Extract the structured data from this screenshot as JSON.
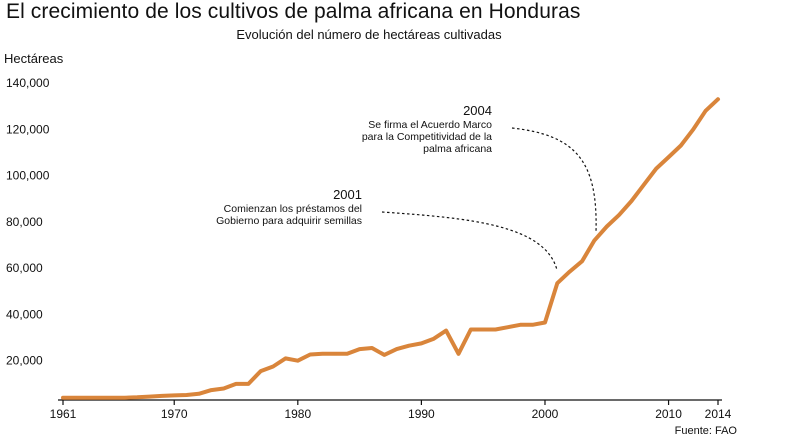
{
  "chart_data": {
    "type": "line",
    "title": "El crecimiento de los cultivos de palma africana en Honduras",
    "subtitle": "Evolución del número de hectáreas cultivadas",
    "ylabel": "Hectáreas",
    "xlabel": "",
    "xlim": [
      1961,
      2014
    ],
    "ylim": [
      0,
      140000
    ],
    "x_ticks": [
      1961,
      1970,
      1980,
      1990,
      2000,
      2010,
      2014
    ],
    "y_ticks": [
      20000,
      40000,
      60000,
      80000,
      100000,
      120000,
      140000
    ],
    "y_tick_labels": [
      "20,000",
      "40,000",
      "60,000",
      "80,000",
      "100,000",
      "120,000",
      "140,000"
    ],
    "grid": false,
    "line_color": "#d9853b",
    "series": [
      {
        "x": [
          1961,
          1962,
          1963,
          1964,
          1965,
          1966,
          1967,
          1968,
          1969,
          1970,
          1971,
          1972,
          1973,
          1974,
          1975,
          1976,
          1977,
          1978,
          1979,
          1980,
          1981,
          1982,
          1983,
          1984,
          1985,
          1986,
          1987,
          1988,
          1989,
          1990,
          1991,
          1992,
          1993,
          1994,
          1995,
          1996,
          1997,
          1998,
          1999,
          2000,
          2001,
          2002,
          2003,
          2004,
          2005,
          2006,
          2007,
          2008,
          2009,
          2010,
          2011,
          2012,
          2013,
          2014
        ],
        "values": [
          4000,
          4000,
          4000,
          4000,
          4000,
          4000,
          4200,
          4500,
          4800,
          5000,
          5200,
          5700,
          7300,
          8000,
          10000,
          10000,
          15500,
          17500,
          21000,
          20000,
          22700,
          23000,
          23000,
          23000,
          25000,
          25500,
          22500,
          25000,
          26500,
          27500,
          29500,
          33000,
          23000,
          33500,
          33500,
          33500,
          34500,
          35500,
          35500,
          36500,
          53500,
          58500,
          63000,
          72000,
          78000,
          83000,
          89000,
          96000,
          103000,
          108000,
          113000,
          120000,
          128000,
          133000
        ]
      }
    ],
    "annotations": [
      {
        "year": "2001",
        "lines": [
          "Comienzan los préstamos del",
          "Gobierno para adquirir semillas"
        ],
        "target": [
          2001,
          56000
        ]
      },
      {
        "year": "2004",
        "lines": [
          "Se firma el Acuerdo Marco",
          "para la Competitividad de la",
          "palma africana"
        ],
        "target": [
          2004,
          72000
        ]
      }
    ],
    "source": "Fuente: FAO"
  }
}
